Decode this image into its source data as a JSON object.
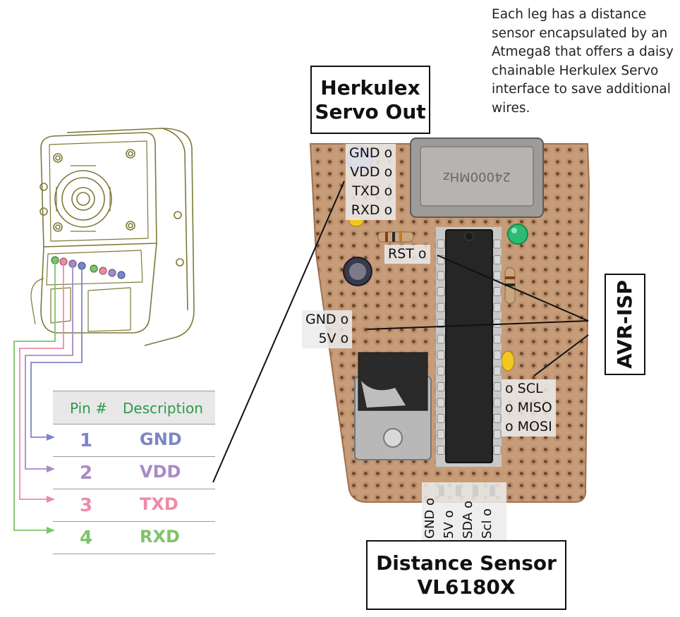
{
  "intro_text": "Each leg has a distance sensor encapsulated by an Atmega8 that offers a daisy chainable Herkulex Servo interface to save additional wires.",
  "herkulex_box": {
    "line1": "Herkulex",
    "line2": "Servo Out"
  },
  "servo_pins": [
    "GND o",
    "VDD o",
    "TXD o",
    "RXD o"
  ],
  "rst_label": "RST o",
  "power_pins": [
    "GND o",
    "5V o"
  ],
  "avr_isp_label": "AVR-ISP",
  "isp_pins": [
    "o SCL",
    "o MISO",
    "o MOSI"
  ],
  "sensor_pins": [
    "GND o",
    "5V o",
    "SDA o",
    "Scl o"
  ],
  "distance_box": {
    "line1": "Distance Sensor",
    "line2": "VL6180X"
  },
  "pin_table": {
    "header": {
      "pin": "Pin #",
      "description": "Description"
    },
    "rows": [
      {
        "pin": "1",
        "description": "GND",
        "color": "#7b86c8"
      },
      {
        "pin": "2",
        "description": "VDD",
        "color": "#a98ac6"
      },
      {
        "pin": "3",
        "description": "TXD",
        "color": "#ee8aa8"
      },
      {
        "pin": "4",
        "description": "RXD",
        "color": "#7ec46a"
      }
    ]
  },
  "chip_marking": "24000MHz"
}
